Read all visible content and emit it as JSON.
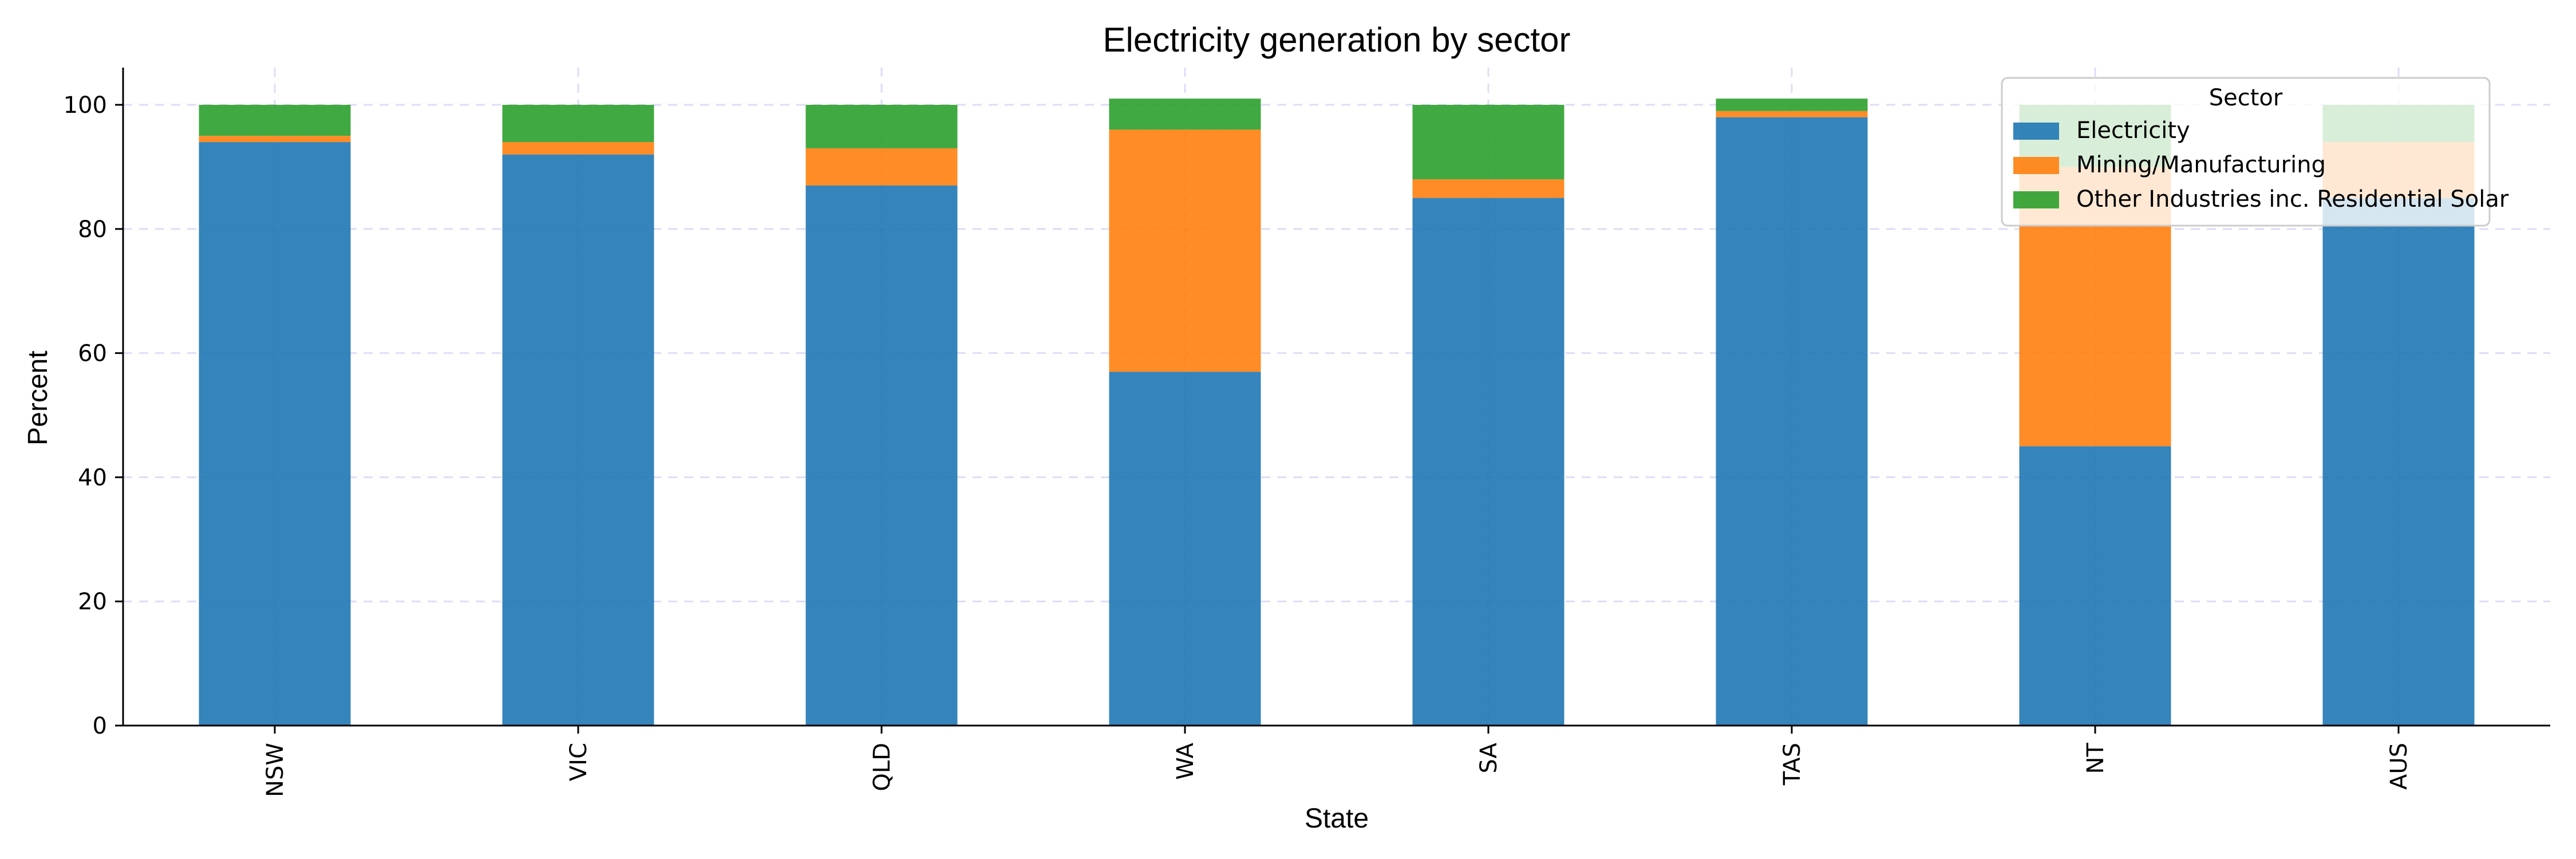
{
  "chart_data": {
    "type": "bar",
    "stacked": true,
    "title": "Electricity generation by sector",
    "xlabel": "State",
    "ylabel": "Percent",
    "categories": [
      "NSW",
      "VIC",
      "QLD",
      "WA",
      "SA",
      "TAS",
      "NT",
      "AUS"
    ],
    "series": [
      {
        "name": "Electricity",
        "color": "#1f77b4",
        "values": [
          94,
          92,
          87,
          57,
          85,
          98,
          45,
          85
        ]
      },
      {
        "name": "Mining/Manufacturing",
        "color": "#ff7f0e",
        "values": [
          1,
          2,
          6,
          39,
          3,
          1,
          45,
          9
        ]
      },
      {
        "name": "Other Industries inc. Residential Solar",
        "color": "#2ca02c",
        "values": [
          5,
          6,
          7,
          5,
          12,
          2,
          10,
          6
        ]
      }
    ],
    "ylim": [
      0,
      106
    ],
    "yticks": [
      0,
      20,
      40,
      60,
      80,
      100
    ],
    "grid": true,
    "legend": {
      "title": "Sector",
      "placement": "top-right"
    }
  }
}
